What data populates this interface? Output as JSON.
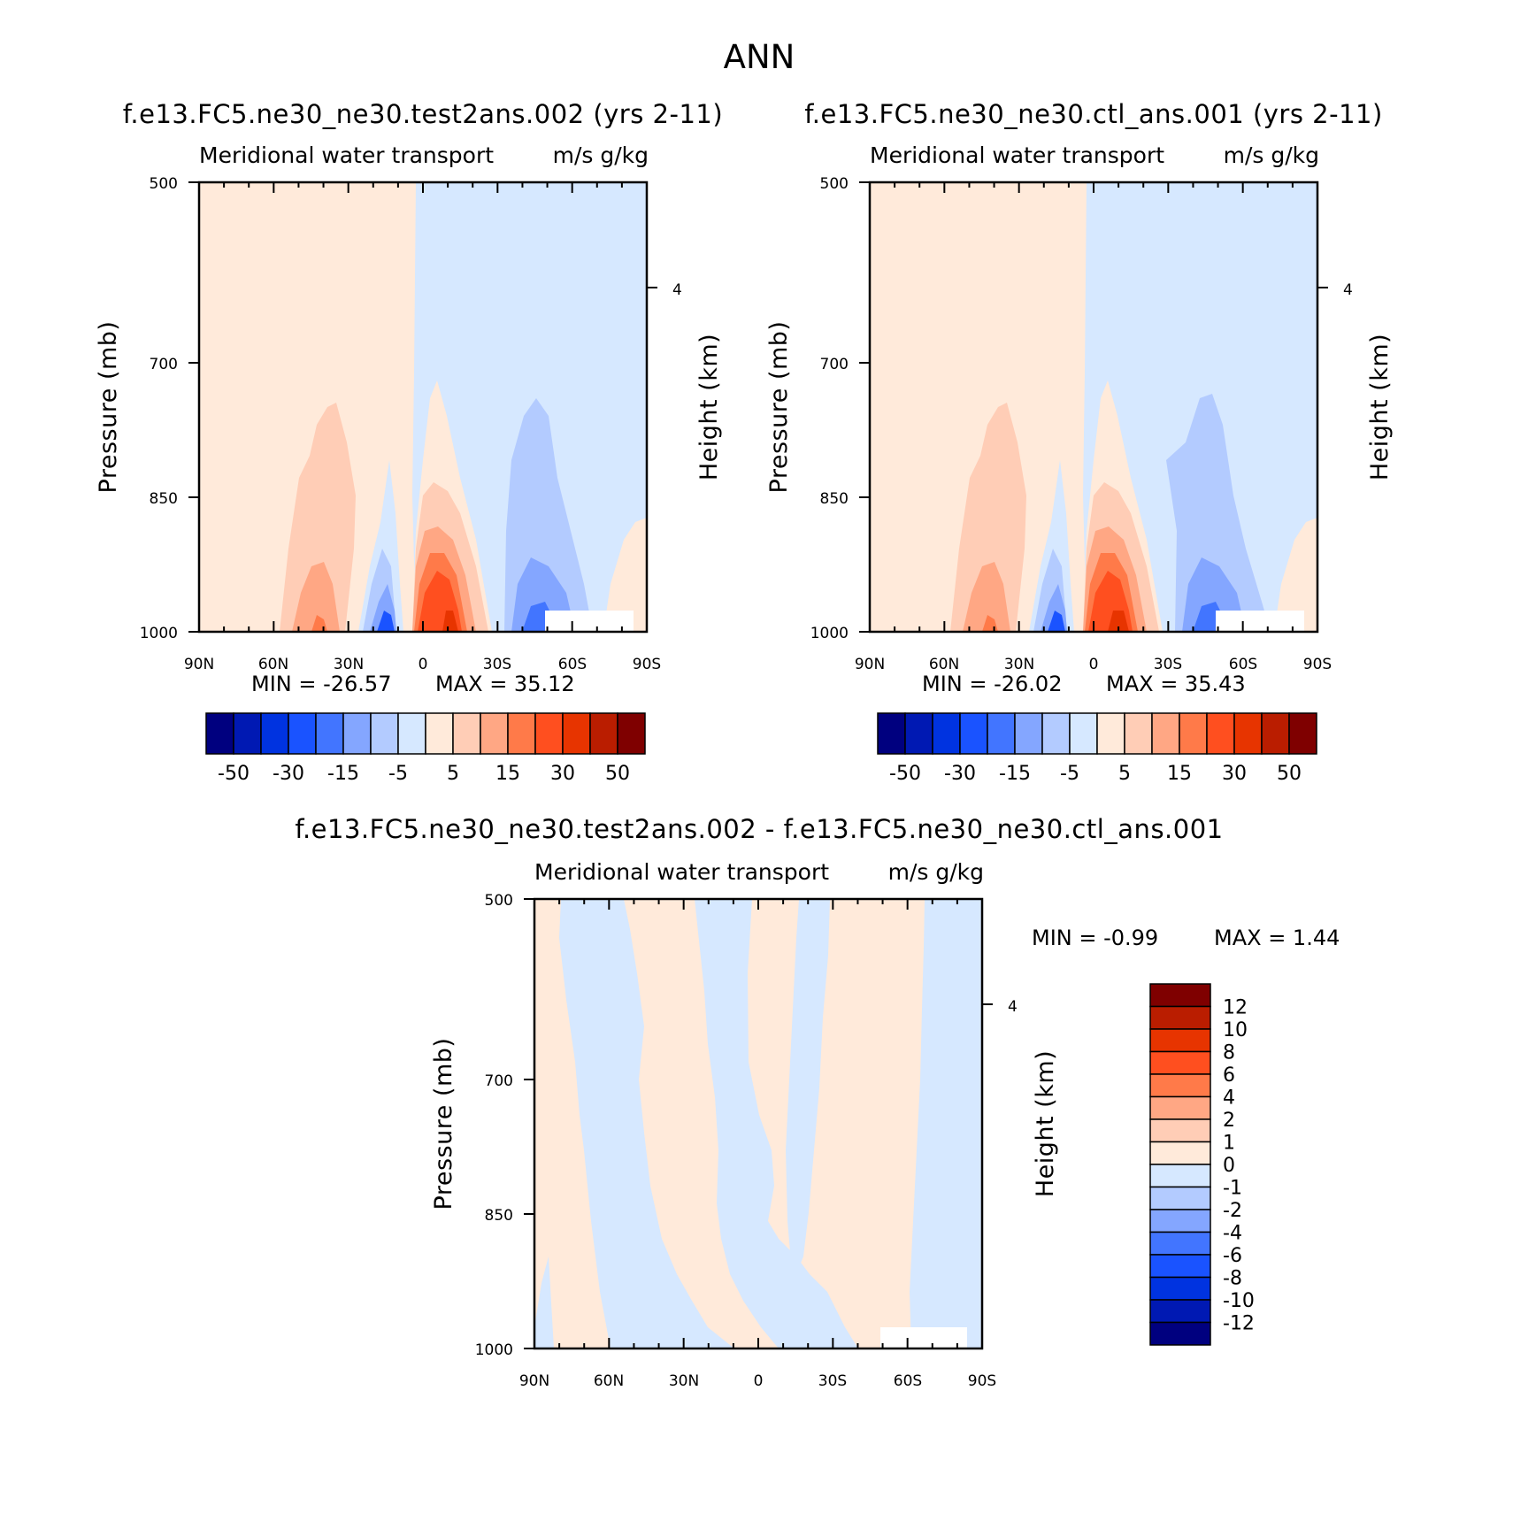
{
  "title": "ANN",
  "chart_data": [
    {
      "type": "heatmap",
      "title": "f.e13.FC5.ne30_ne30.test2ans.002 (yrs 2-11)",
      "left_string": "Meridional water transport",
      "right_string": "m/s g/kg",
      "xlabel": "",
      "ylabel": "Pressure (mb)",
      "ylabel_right": "Height (km)",
      "x_ticks": [
        "90N",
        "60N",
        "30N",
        "0",
        "30S",
        "60S",
        "90S"
      ],
      "y_ticks": [
        "500",
        "700",
        "850",
        "1000"
      ],
      "y_right_ticks": [
        "4"
      ],
      "min_label": "MIN = -26.57",
      "max_label": "MAX = 35.12",
      "min": -26.57,
      "max": 35.12,
      "colorbar_labels": [
        "-50",
        "-30",
        "-15",
        "-5",
        "5",
        "15",
        "30",
        "50"
      ]
    },
    {
      "type": "heatmap",
      "title": "f.e13.FC5.ne30_ne30.ctl_ans.001 (yrs 2-11)",
      "left_string": "Meridional water transport",
      "right_string": "m/s g/kg",
      "xlabel": "",
      "ylabel": "Pressure (mb)",
      "ylabel_right": "Height (km)",
      "x_ticks": [
        "90N",
        "60N",
        "30N",
        "0",
        "30S",
        "60S",
        "90S"
      ],
      "y_ticks": [
        "500",
        "700",
        "850",
        "1000"
      ],
      "y_right_ticks": [
        "4"
      ],
      "min_label": "MIN = -26.02",
      "max_label": "MAX = 35.43",
      "min": -26.02,
      "max": 35.43,
      "colorbar_labels": [
        "-50",
        "-30",
        "-15",
        "-5",
        "5",
        "15",
        "30",
        "50"
      ]
    },
    {
      "type": "heatmap",
      "title": "f.e13.FC5.ne30_ne30.test2ans.002 - f.e13.FC5.ne30_ne30.ctl_ans.001",
      "left_string": "Meridional water transport",
      "right_string": "m/s g/kg",
      "xlabel": "",
      "ylabel": "Pressure (mb)",
      "ylabel_right": "Height (km)",
      "x_ticks": [
        "90N",
        "60N",
        "30N",
        "0",
        "30S",
        "60S",
        "90S"
      ],
      "y_ticks": [
        "500",
        "700",
        "850",
        "1000"
      ],
      "y_right_ticks": [
        "4"
      ],
      "min_label": "MIN = -0.99",
      "max_label": "MAX = 1.44",
      "min": -0.99,
      "max": 1.44,
      "colorbar_labels": [
        "12",
        "10",
        "8",
        "6",
        "4",
        "2",
        "1",
        "0",
        "-1",
        "-2",
        "-4",
        "-6",
        "-8",
        "-10",
        "-12"
      ]
    }
  ],
  "colors": {
    "levels_16": [
      "#00007f",
      "#0019b3",
      "#0033e0",
      "#1a53ff",
      "#4275ff",
      "#84a6ff",
      "#b3cbff",
      "#d6e8ff",
      "#ffeada",
      "#ffcdb6",
      "#ffa784",
      "#ff7a49",
      "#ff4f1f",
      "#e73400",
      "#ba1d00",
      "#7f0000"
    ]
  }
}
